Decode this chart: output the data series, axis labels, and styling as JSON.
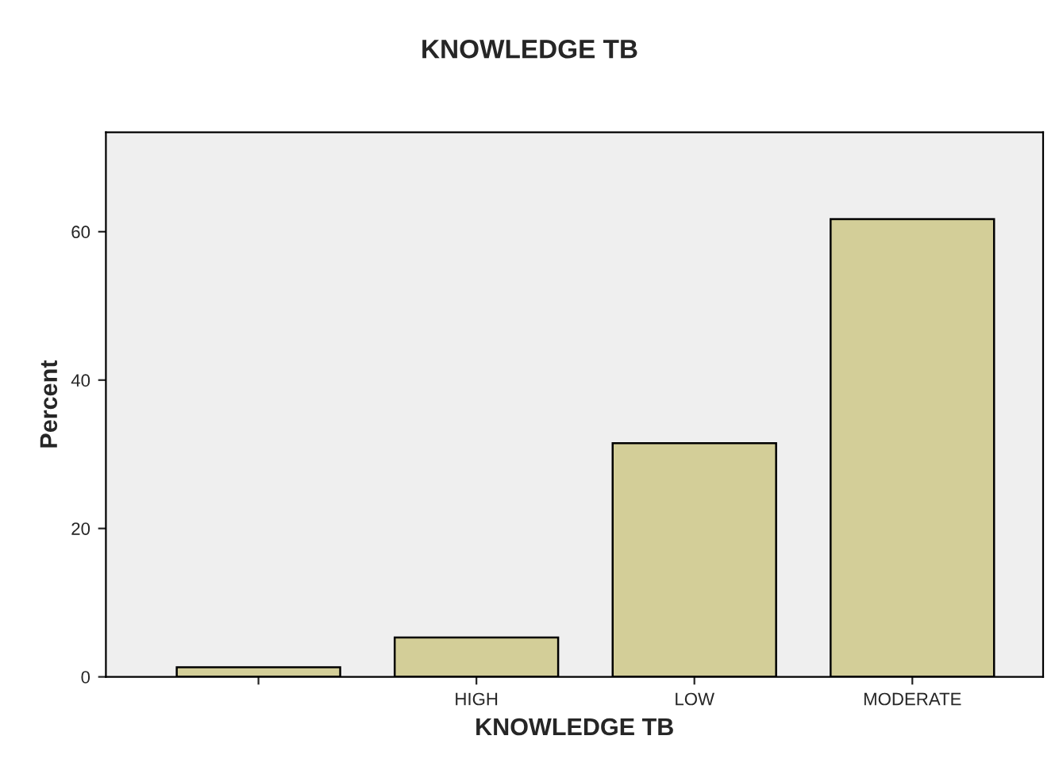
{
  "chart_data": {
    "type": "bar",
    "title": "KNOWLEDGE TB",
    "xlabel": "KNOWLEDGE TB",
    "ylabel": "Percent",
    "categories": [
      null,
      "HIGH",
      "LOW",
      "MODERATE"
    ],
    "values": [
      1.3,
      5.3,
      31.5,
      61.7
    ],
    "color": "#d3ce98",
    "ylim": [
      0,
      73.4
    ],
    "yticks": [
      0,
      20,
      40,
      60
    ],
    "grid": false
  }
}
